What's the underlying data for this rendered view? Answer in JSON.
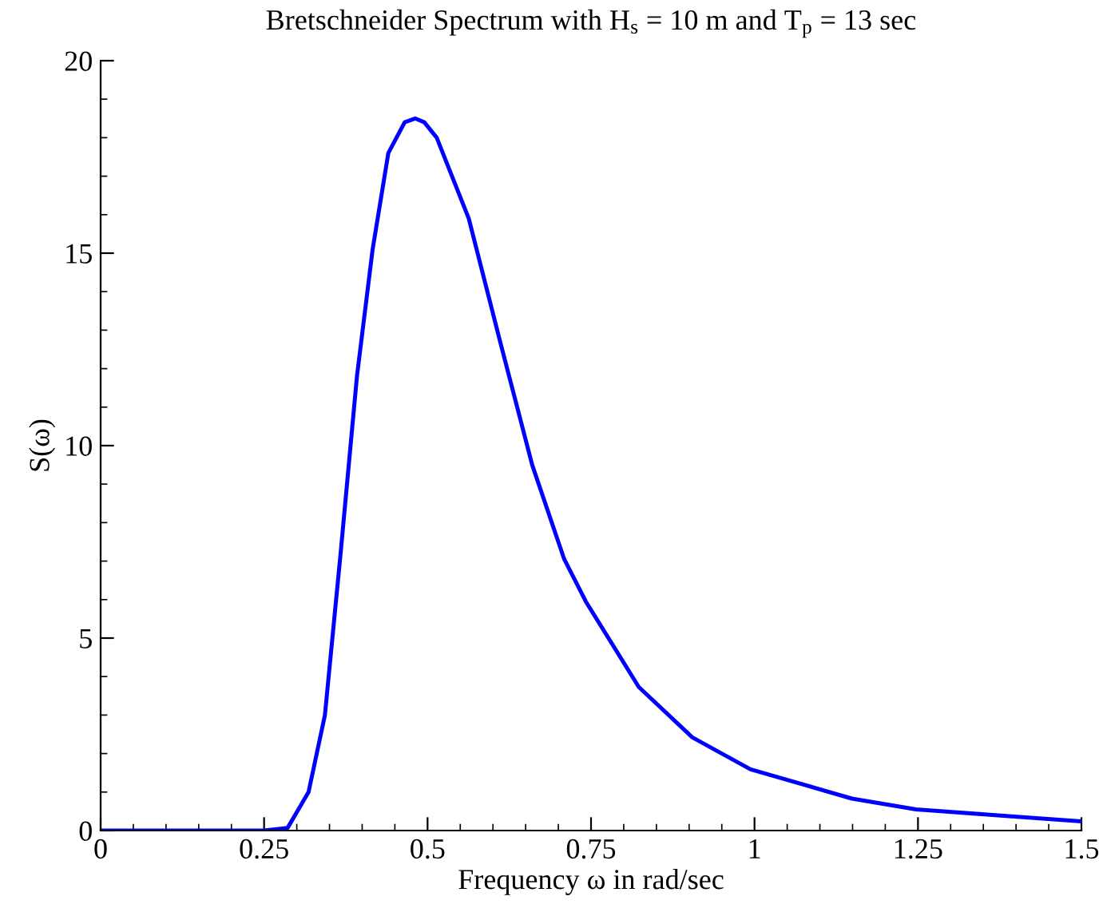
{
  "chart_data": {
    "type": "line",
    "title": "Bretschneider Spectrum with H$_{s}$ = 10 m and T$_{p}$ = 13 sec",
    "xlabel": "Frequency ω in rad/sec",
    "ylabel": "S(ω)",
    "x": [
      0,
      0.25,
      0.286,
      0.318,
      0.343,
      0.367,
      0.392,
      0.416,
      0.44,
      0.465,
      0.481,
      0.495,
      0.514,
      0.563,
      0.611,
      0.66,
      0.709,
      0.742,
      0.823,
      0.905,
      0.994,
      1.149,
      1.247,
      1.393,
      1.5
    ],
    "series": [
      {
        "color": "#0000ff",
        "values": [
          0,
          0,
          0.07,
          1.0,
          3.0,
          7.2,
          11.8,
          15.1,
          17.6,
          18.4,
          18.5,
          18.4,
          18.0,
          15.9,
          12.7,
          9.5,
          7.05,
          5.95,
          3.73,
          2.42,
          1.59,
          0.83,
          0.55,
          0.37,
          0.24
        ]
      }
    ],
    "xlim": [
      0,
      1.5
    ],
    "ylim": [
      0,
      20
    ],
    "xticks": [
      0,
      0.25,
      0.5,
      0.75,
      1,
      1.25,
      1.5
    ],
    "yticks": [
      0,
      5,
      10,
      15,
      20
    ],
    "grid": false,
    "legend": false,
    "line_style": "solid",
    "marker": "none"
  }
}
